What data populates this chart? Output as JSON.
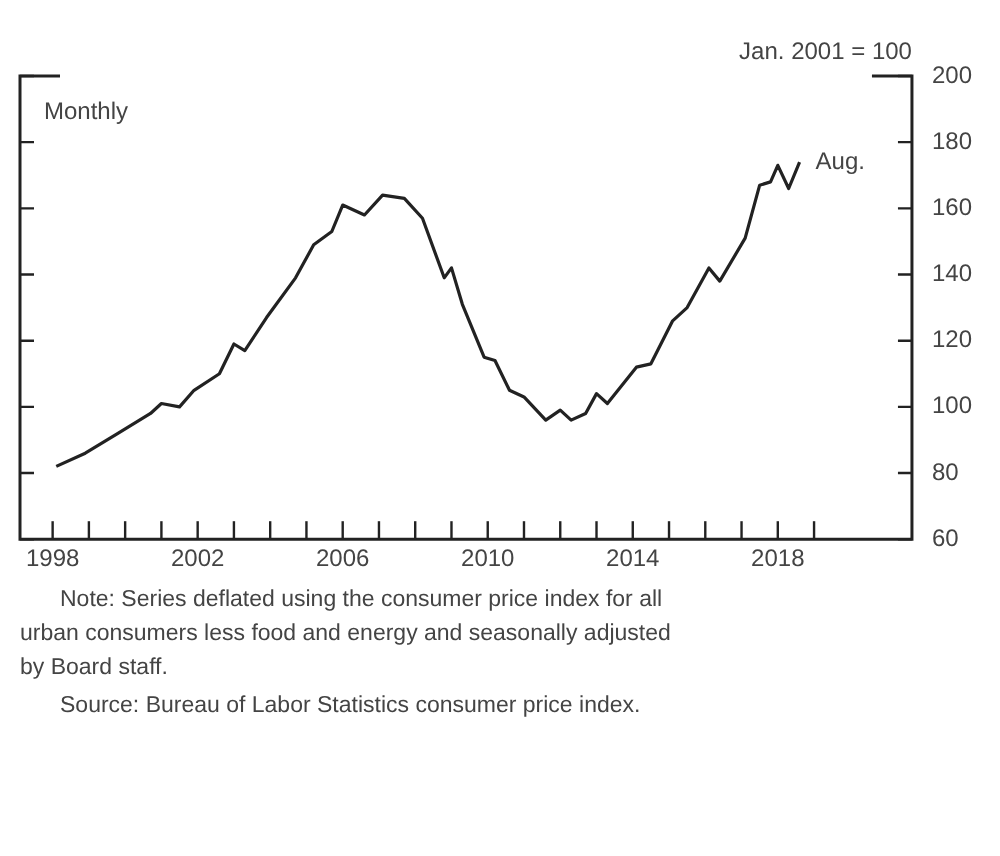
{
  "chart_data": {
    "type": "line",
    "ylabel": "Jan. 2001 = 100",
    "x": [
      1998.1,
      1998.9,
      1999.8,
      2000.7,
      2001.0,
      2001.5,
      2001.9,
      2002.6,
      2003.0,
      2003.3,
      2003.9,
      2004.7,
      2005.2,
      2005.7,
      2006.0,
      2006.6,
      2007.1,
      2007.7,
      2008.2,
      2008.8,
      2009.0,
      2009.3,
      2009.9,
      2010.2,
      2010.6,
      2011.0,
      2011.6,
      2012.0,
      2012.3,
      2012.7,
      2013.0,
      2013.3,
      2014.1,
      2014.5,
      2015.1,
      2015.5,
      2016.1,
      2016.4,
      2017.1,
      2017.5,
      2017.8,
      2018.0,
      2018.3,
      2018.6
    ],
    "series": [
      {
        "color": "#222222",
        "values": [
          82,
          86,
          92,
          98,
          101,
          100,
          105,
          110,
          119,
          117,
          127,
          139,
          149,
          153,
          161,
          158,
          164,
          163,
          157,
          139,
          142,
          131,
          115,
          114,
          105,
          103,
          96,
          99,
          96,
          98,
          104,
          101,
          112,
          113,
          126,
          130,
          142,
          138,
          151,
          167,
          168,
          173,
          166,
          174
        ]
      }
    ],
    "xlim": [
      1997.1,
      2021.7
    ],
    "xticks": [
      {
        "value": 1998,
        "label": "1998"
      },
      {
        "value": 1999,
        "label": null
      },
      {
        "value": 2000,
        "label": null
      },
      {
        "value": 2001,
        "label": null
      },
      {
        "value": 2002,
        "label": "2002"
      },
      {
        "value": 2003,
        "label": null
      },
      {
        "value": 2004,
        "label": null
      },
      {
        "value": 2005,
        "label": null
      },
      {
        "value": 2006,
        "label": "2006"
      },
      {
        "value": 2007,
        "label": null
      },
      {
        "value": 2008,
        "label": null
      },
      {
        "value": 2009,
        "label": null
      },
      {
        "value": 2010,
        "label": "2010"
      },
      {
        "value": 2011,
        "label": null
      },
      {
        "value": 2012,
        "label": null
      },
      {
        "value": 2013,
        "label": null
      },
      {
        "value": 2014,
        "label": "2014"
      },
      {
        "value": 2015,
        "label": null
      },
      {
        "value": 2016,
        "label": null
      },
      {
        "value": 2017,
        "label": null
      },
      {
        "value": 2018,
        "label": "2018"
      },
      {
        "value": 2019,
        "label": null
      }
    ],
    "ylim": [
      60,
      200
    ],
    "yticks": [
      60,
      80,
      100,
      120,
      140,
      160,
      180,
      200
    ],
    "grid": false,
    "legend": false,
    "marker": "none",
    "line_style": "solid",
    "annotations": [
      "Monthly",
      {
        "text": "Aug.",
        "x": 2018.6,
        "y": 174
      },
      "Note: Series deflated using the consumer price index for all urban consumers less food and energy and seasonally adjusted by Board staff.",
      "Source: Bureau of Labor Statistics consumer price index."
    ]
  }
}
